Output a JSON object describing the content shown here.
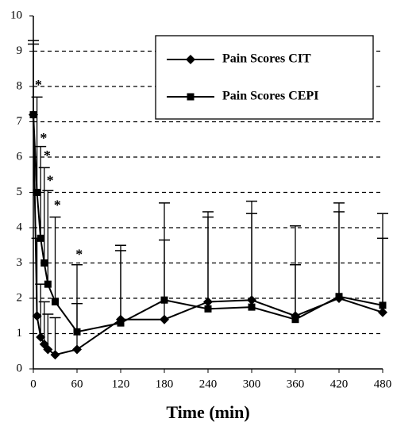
{
  "chart_data": {
    "type": "line",
    "x_label": "Time (min)",
    "x": [
      0,
      5,
      10,
      15,
      20,
      30,
      60,
      120,
      180,
      240,
      300,
      360,
      420,
      480
    ],
    "series": [
      {
        "name": "Pain Scores CIT",
        "color": "#000000",
        "marker": "diamond",
        "values": [
          7.2,
          1.5,
          0.9,
          0.7,
          0.55,
          0.4,
          0.55,
          1.4,
          1.4,
          1.9,
          1.95,
          1.5,
          2.0,
          1.6
        ],
        "errors": [
          2.0,
          2.2,
          1.5,
          1.2,
          1.0,
          1.05,
          1.3,
          1.95,
          2.25,
          2.4,
          2.45,
          1.45,
          2.45,
          2.1
        ]
      },
      {
        "name": "Pain Scores CEPI",
        "color": "#000000",
        "marker": "square",
        "values": [
          7.2,
          5.0,
          3.7,
          3.0,
          2.4,
          1.9,
          1.05,
          1.3,
          1.95,
          1.7,
          1.75,
          1.4,
          2.05,
          1.8
        ],
        "errors": [
          2.1,
          2.7,
          2.6,
          2.7,
          2.65,
          2.4,
          1.9,
          2.2,
          2.75,
          2.75,
          3.0,
          2.65,
          2.65,
          2.6
        ]
      }
    ],
    "annotations": [
      {
        "text": "*",
        "x": 7,
        "y": 8.0
      },
      {
        "text": "*",
        "x": 14,
        "y": 6.5
      },
      {
        "text": "*",
        "x": 19,
        "y": 6.0
      },
      {
        "text": "*",
        "x": 23,
        "y": 5.3
      },
      {
        "text": "*",
        "x": 33,
        "y": 4.6
      },
      {
        "text": "*",
        "x": 63,
        "y": 3.2
      }
    ],
    "xlim": [
      0,
      480
    ],
    "xticks": [
      0,
      60,
      120,
      180,
      240,
      300,
      360,
      420,
      480
    ],
    "ylim": [
      0,
      10
    ],
    "yticks": [
      0,
      1,
      2,
      3,
      4,
      5,
      6,
      7,
      8,
      9,
      10
    ],
    "grid": true,
    "legend": "upper right"
  }
}
